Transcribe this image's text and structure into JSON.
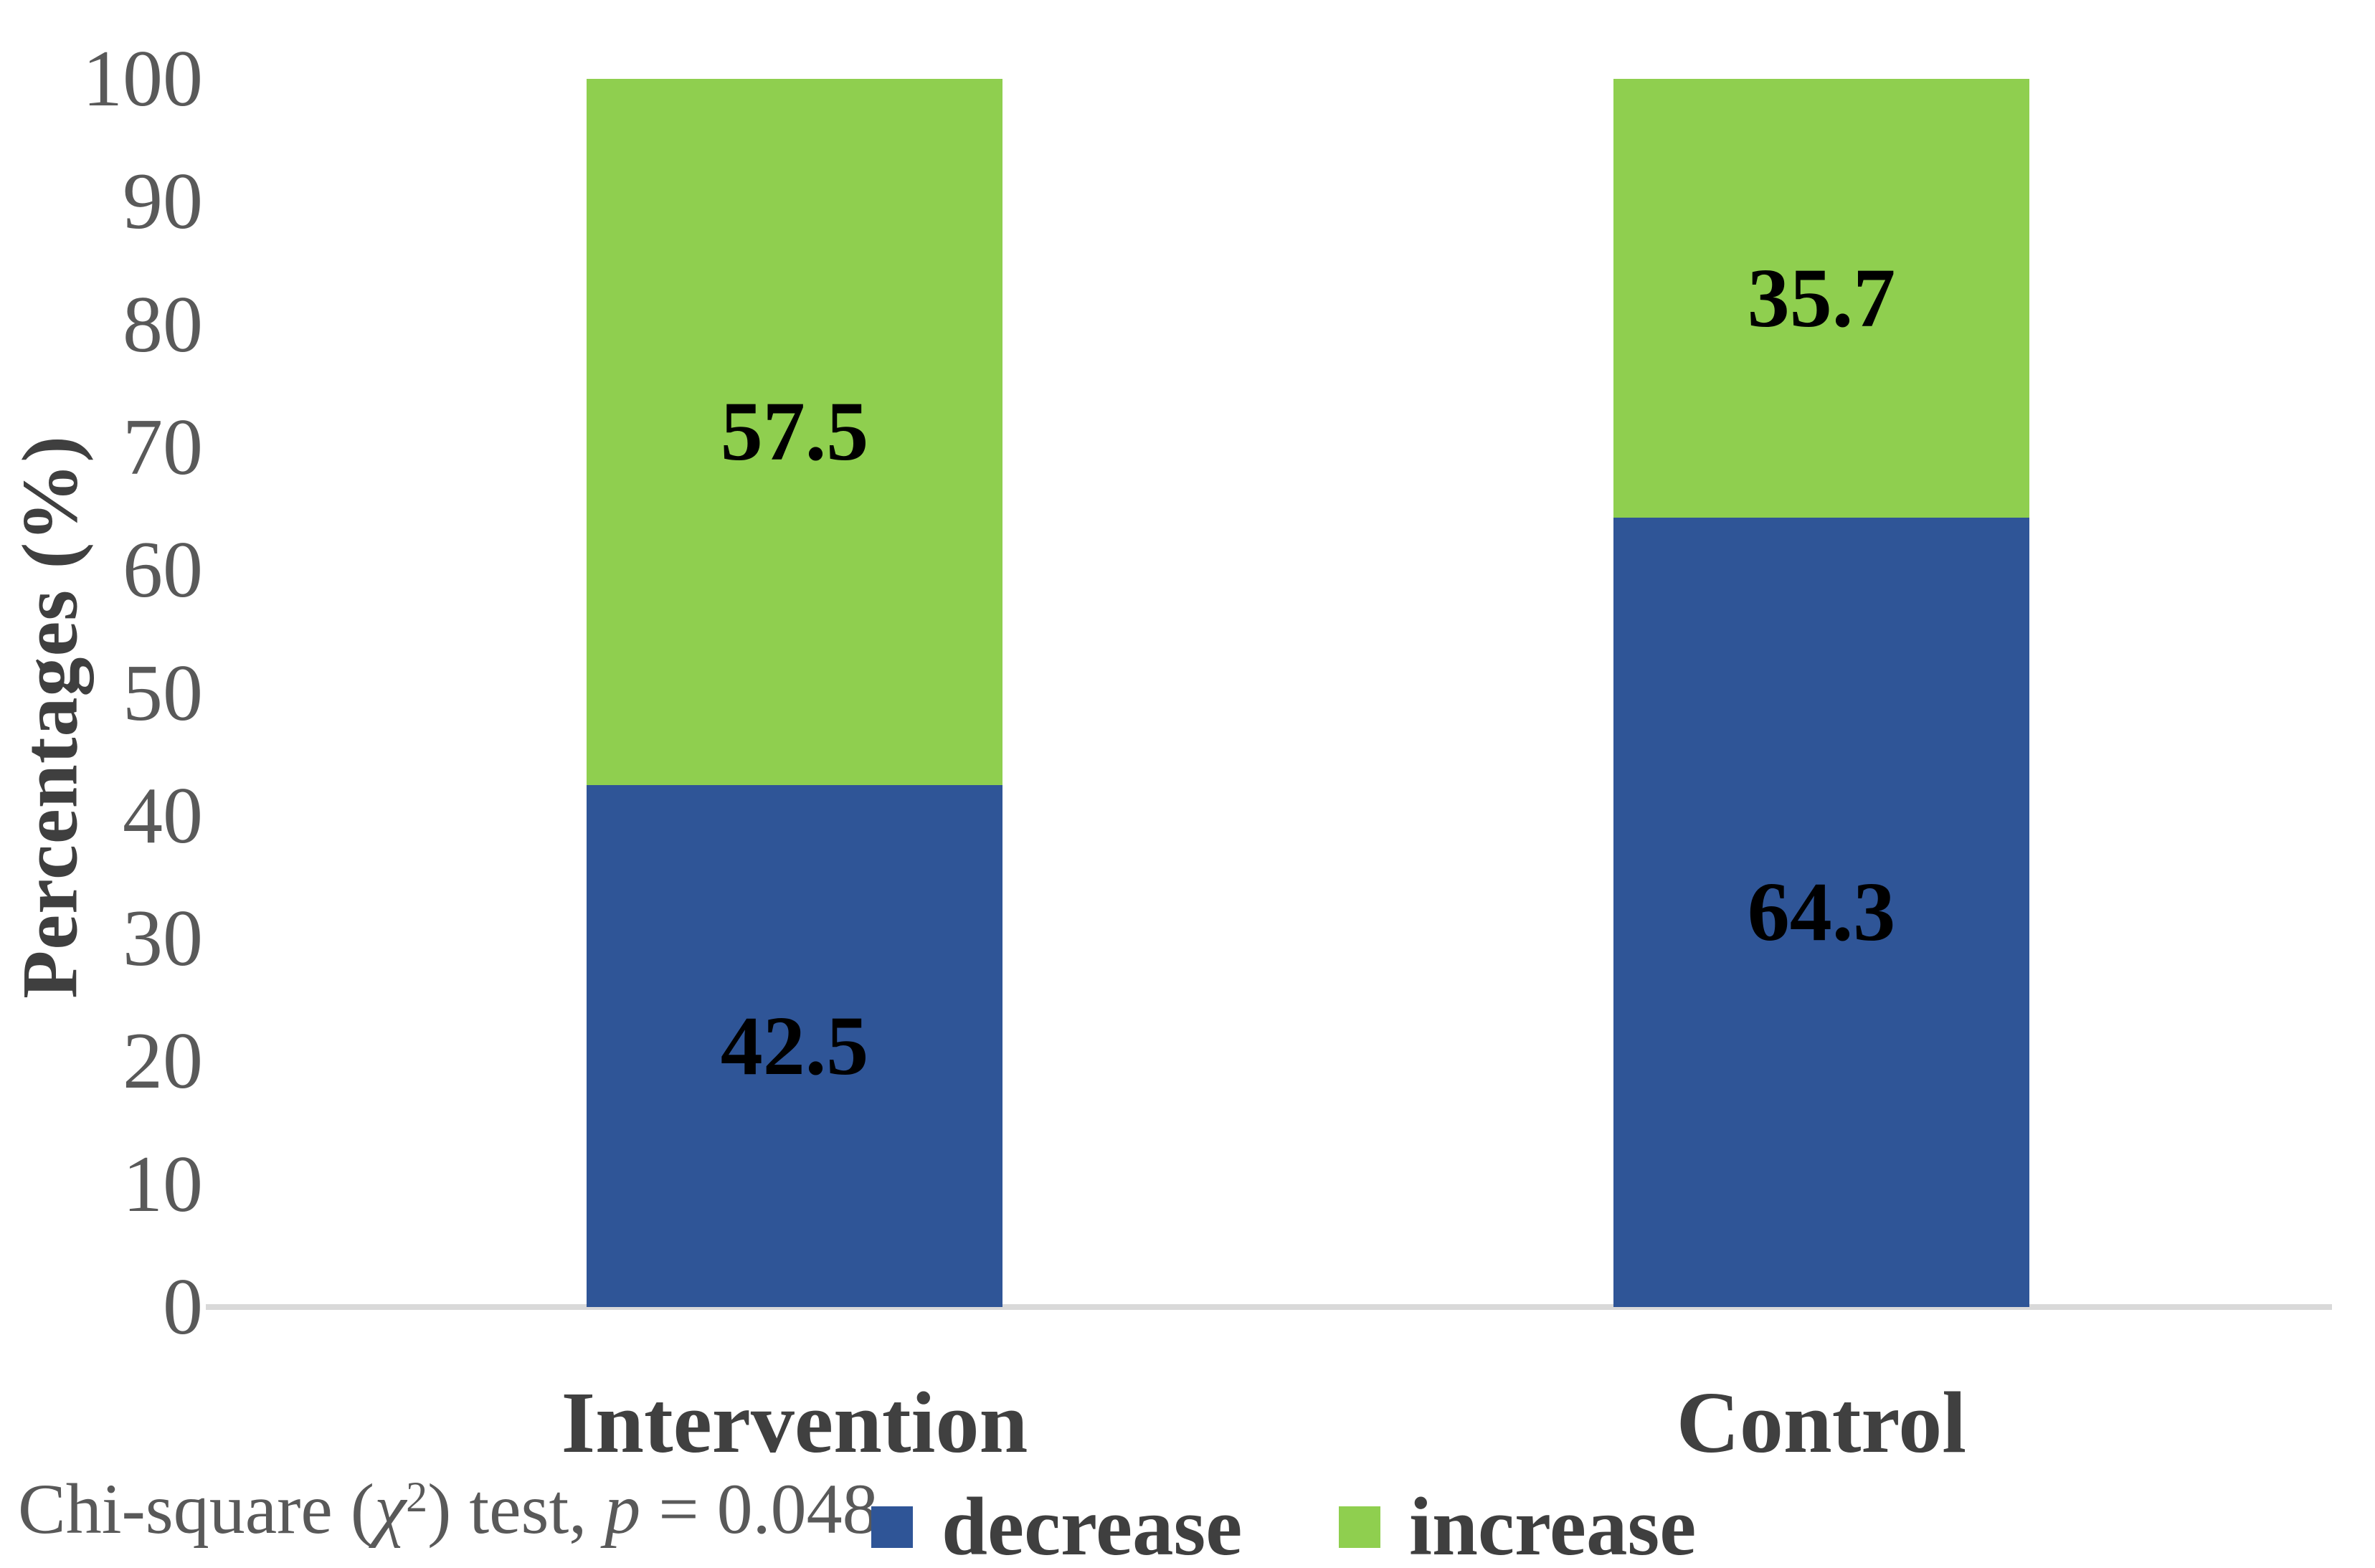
{
  "chart_data": {
    "type": "bar",
    "stacked": true,
    "categories": [
      "Intervention",
      "Control"
    ],
    "series": [
      {
        "name": "decrease",
        "color": "#2F5597",
        "values": [
          42.5,
          64.3
        ]
      },
      {
        "name": "increase",
        "color": "#8FCF4F",
        "values": [
          57.5,
          35.7
        ]
      }
    ],
    "title": "",
    "xlabel": "",
    "ylabel": "Percentages (%)",
    "ylim": [
      0,
      100
    ],
    "yticks": [
      0,
      10,
      20,
      30,
      40,
      50,
      60,
      70,
      80,
      90,
      100
    ],
    "grid": false,
    "legend_position": "bottom",
    "value_labels": true,
    "axis_line_color": "#D9D9D9",
    "tick_text_color": "#595959",
    "category_text_color": "#404040",
    "value_text_color": "#000000"
  },
  "note": {
    "full": "Chi-square (χ²) test, p = 0.048",
    "prefix": "Chi-square (",
    "chi": "χ",
    "exponent": "2",
    "middle": ") test, ",
    "p_symbol": "p",
    "value_text": " = 0.048"
  }
}
